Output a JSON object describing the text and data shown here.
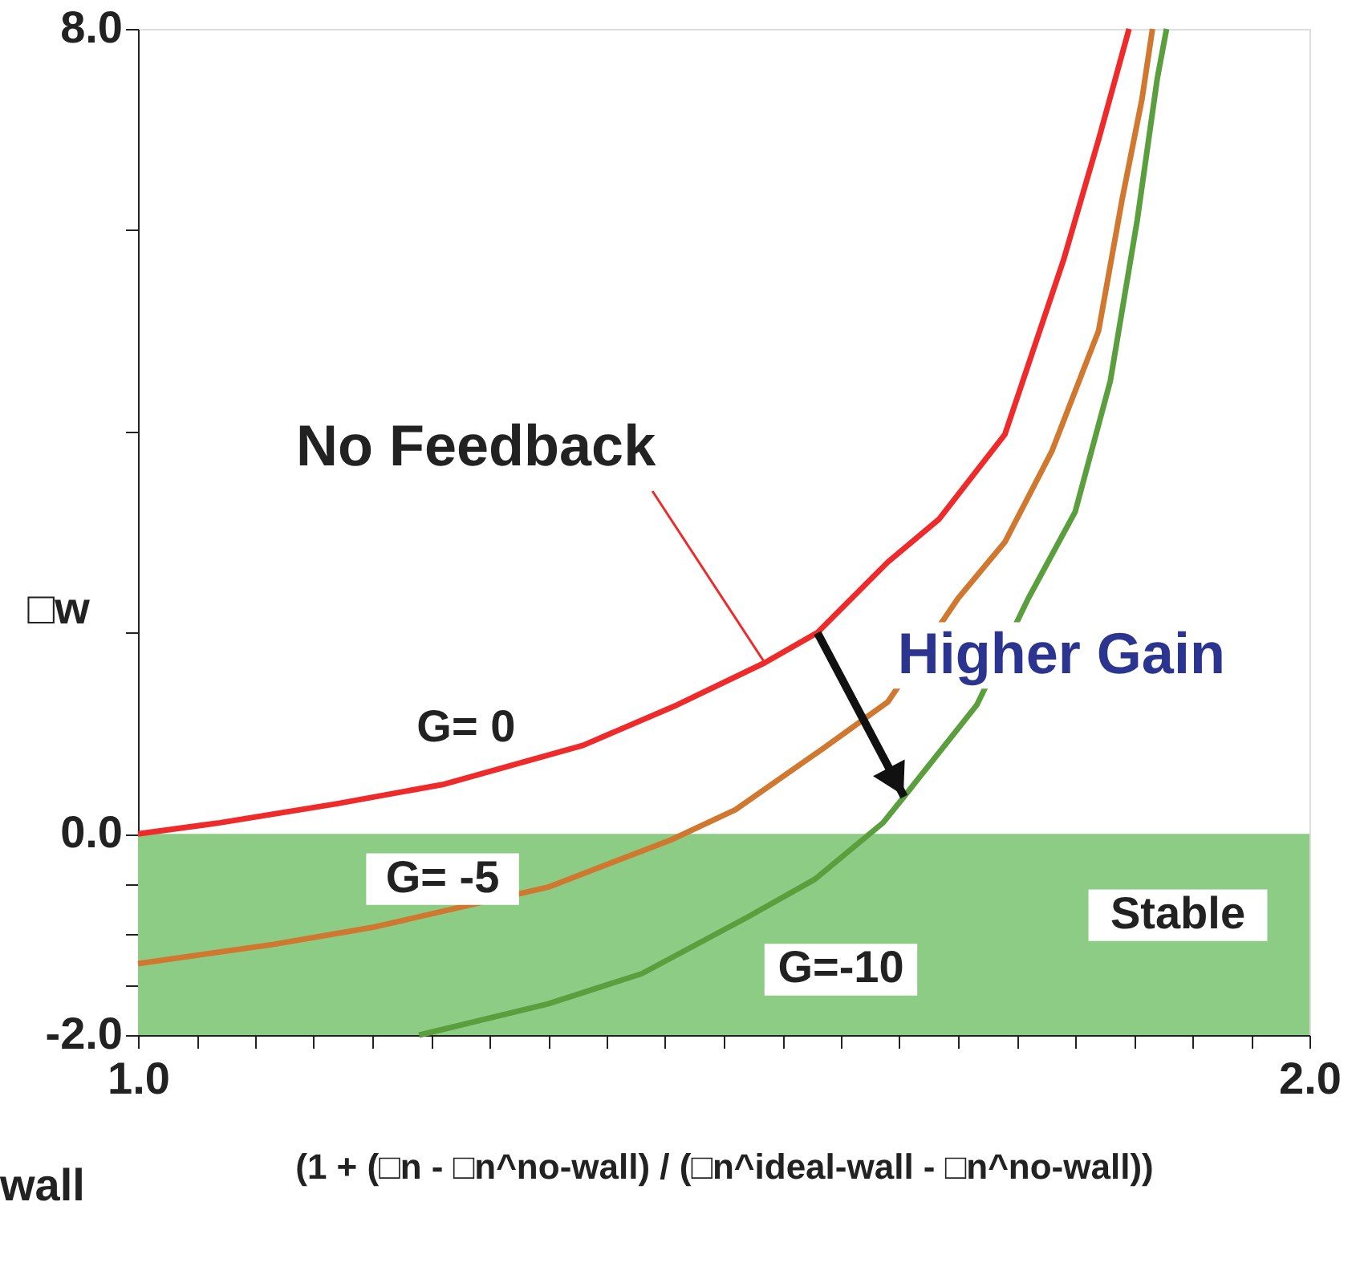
{
  "chart_data": {
    "type": "line",
    "xlabel": "(1 + (□n - □n^no-wall) / (□n^ideal-wall - □n^no-wall))",
    "ylabel": "□w",
    "xlim": [
      1.0,
      2.0
    ],
    "ylim": [
      -2.0,
      8.0
    ],
    "xticks": [
      {
        "value": 1.0,
        "label": "1.0"
      },
      {
        "value": 1.05,
        "label": null
      },
      {
        "value": 1.1,
        "label": null
      },
      {
        "value": 1.15,
        "label": null
      },
      {
        "value": 1.2,
        "label": null
      },
      {
        "value": 1.25,
        "label": null
      },
      {
        "value": 1.3,
        "label": null
      },
      {
        "value": 1.35,
        "label": null
      },
      {
        "value": 1.4,
        "label": null
      },
      {
        "value": 1.45,
        "label": null
      },
      {
        "value": 1.5,
        "label": null
      },
      {
        "value": 1.55,
        "label": null
      },
      {
        "value": 1.6,
        "label": null
      },
      {
        "value": 1.65,
        "label": null
      },
      {
        "value": 1.7,
        "label": null
      },
      {
        "value": 1.75,
        "label": null
      },
      {
        "value": 1.8,
        "label": null
      },
      {
        "value": 1.85,
        "label": null
      },
      {
        "value": 1.9,
        "label": null
      },
      {
        "value": 1.95,
        "label": null
      },
      {
        "value": 2.0,
        "label": "2.0"
      }
    ],
    "yticks": [
      {
        "value": -2.0,
        "label": "-2.0"
      },
      {
        "value": -1.5,
        "label": null
      },
      {
        "value": -1.0,
        "label": null
      },
      {
        "value": -0.5,
        "label": null
      },
      {
        "value": 0.0,
        "label": "0.0"
      },
      {
        "value": 2.0,
        "label": null
      },
      {
        "value": 4.0,
        "label": null
      },
      {
        "value": 6.0,
        "label": null
      },
      {
        "value": 8.0,
        "label": "8.0"
      }
    ],
    "grid": false,
    "marker": "none",
    "line_style": "solid",
    "series": [
      {
        "name": "G= 0",
        "color": "#ee2a2a",
        "x": [
          1.0,
          1.07,
          1.17,
          1.26,
          1.38,
          1.46,
          1.535,
          1.58,
          1.64,
          1.684,
          1.74,
          1.79,
          1.82,
          1.846
        ],
        "values": [
          0.0,
          0.11,
          0.3,
          0.49,
          0.88,
          1.28,
          1.7,
          2.0,
          2.7,
          3.13,
          3.97,
          5.7,
          6.9,
          8.0
        ]
      },
      {
        "name": "G= -5",
        "color": "#d0782f",
        "x": [
          1.0,
          1.115,
          1.2,
          1.35,
          1.455,
          1.51,
          1.585,
          1.64,
          1.7,
          1.74,
          1.78,
          1.82,
          1.84,
          1.857,
          1.866
        ],
        "values": [
          -1.29,
          -1.1,
          -0.93,
          -0.53,
          -0.06,
          0.24,
          0.85,
          1.31,
          2.34,
          2.9,
          3.8,
          5.0,
          6.3,
          7.3,
          8.0
        ]
      },
      {
        "name": "G=-10",
        "color": "#5a9e3e",
        "x": [
          1.24,
          1.35,
          1.43,
          1.52,
          1.578,
          1.636,
          1.654,
          1.716,
          1.76,
          1.8,
          1.83,
          1.853,
          1.87,
          1.878
        ],
        "values": [
          -2.0,
          -1.69,
          -1.39,
          -0.83,
          -0.45,
          0.11,
          0.37,
          1.28,
          2.34,
          3.2,
          4.5,
          6.1,
          7.5,
          8.0
        ]
      }
    ],
    "bands": [
      {
        "axis": "y",
        "from": -2.0,
        "to": 0.0,
        "label": "Stable",
        "color": "#8dcc85"
      }
    ],
    "annotations": [
      {
        "text": "No Feedback",
        "x": 1.535,
        "y": 1.7
      },
      {
        "text": "Higher Gain",
        "x": 1.654,
        "y": 0.37
      },
      "wall"
    ]
  }
}
